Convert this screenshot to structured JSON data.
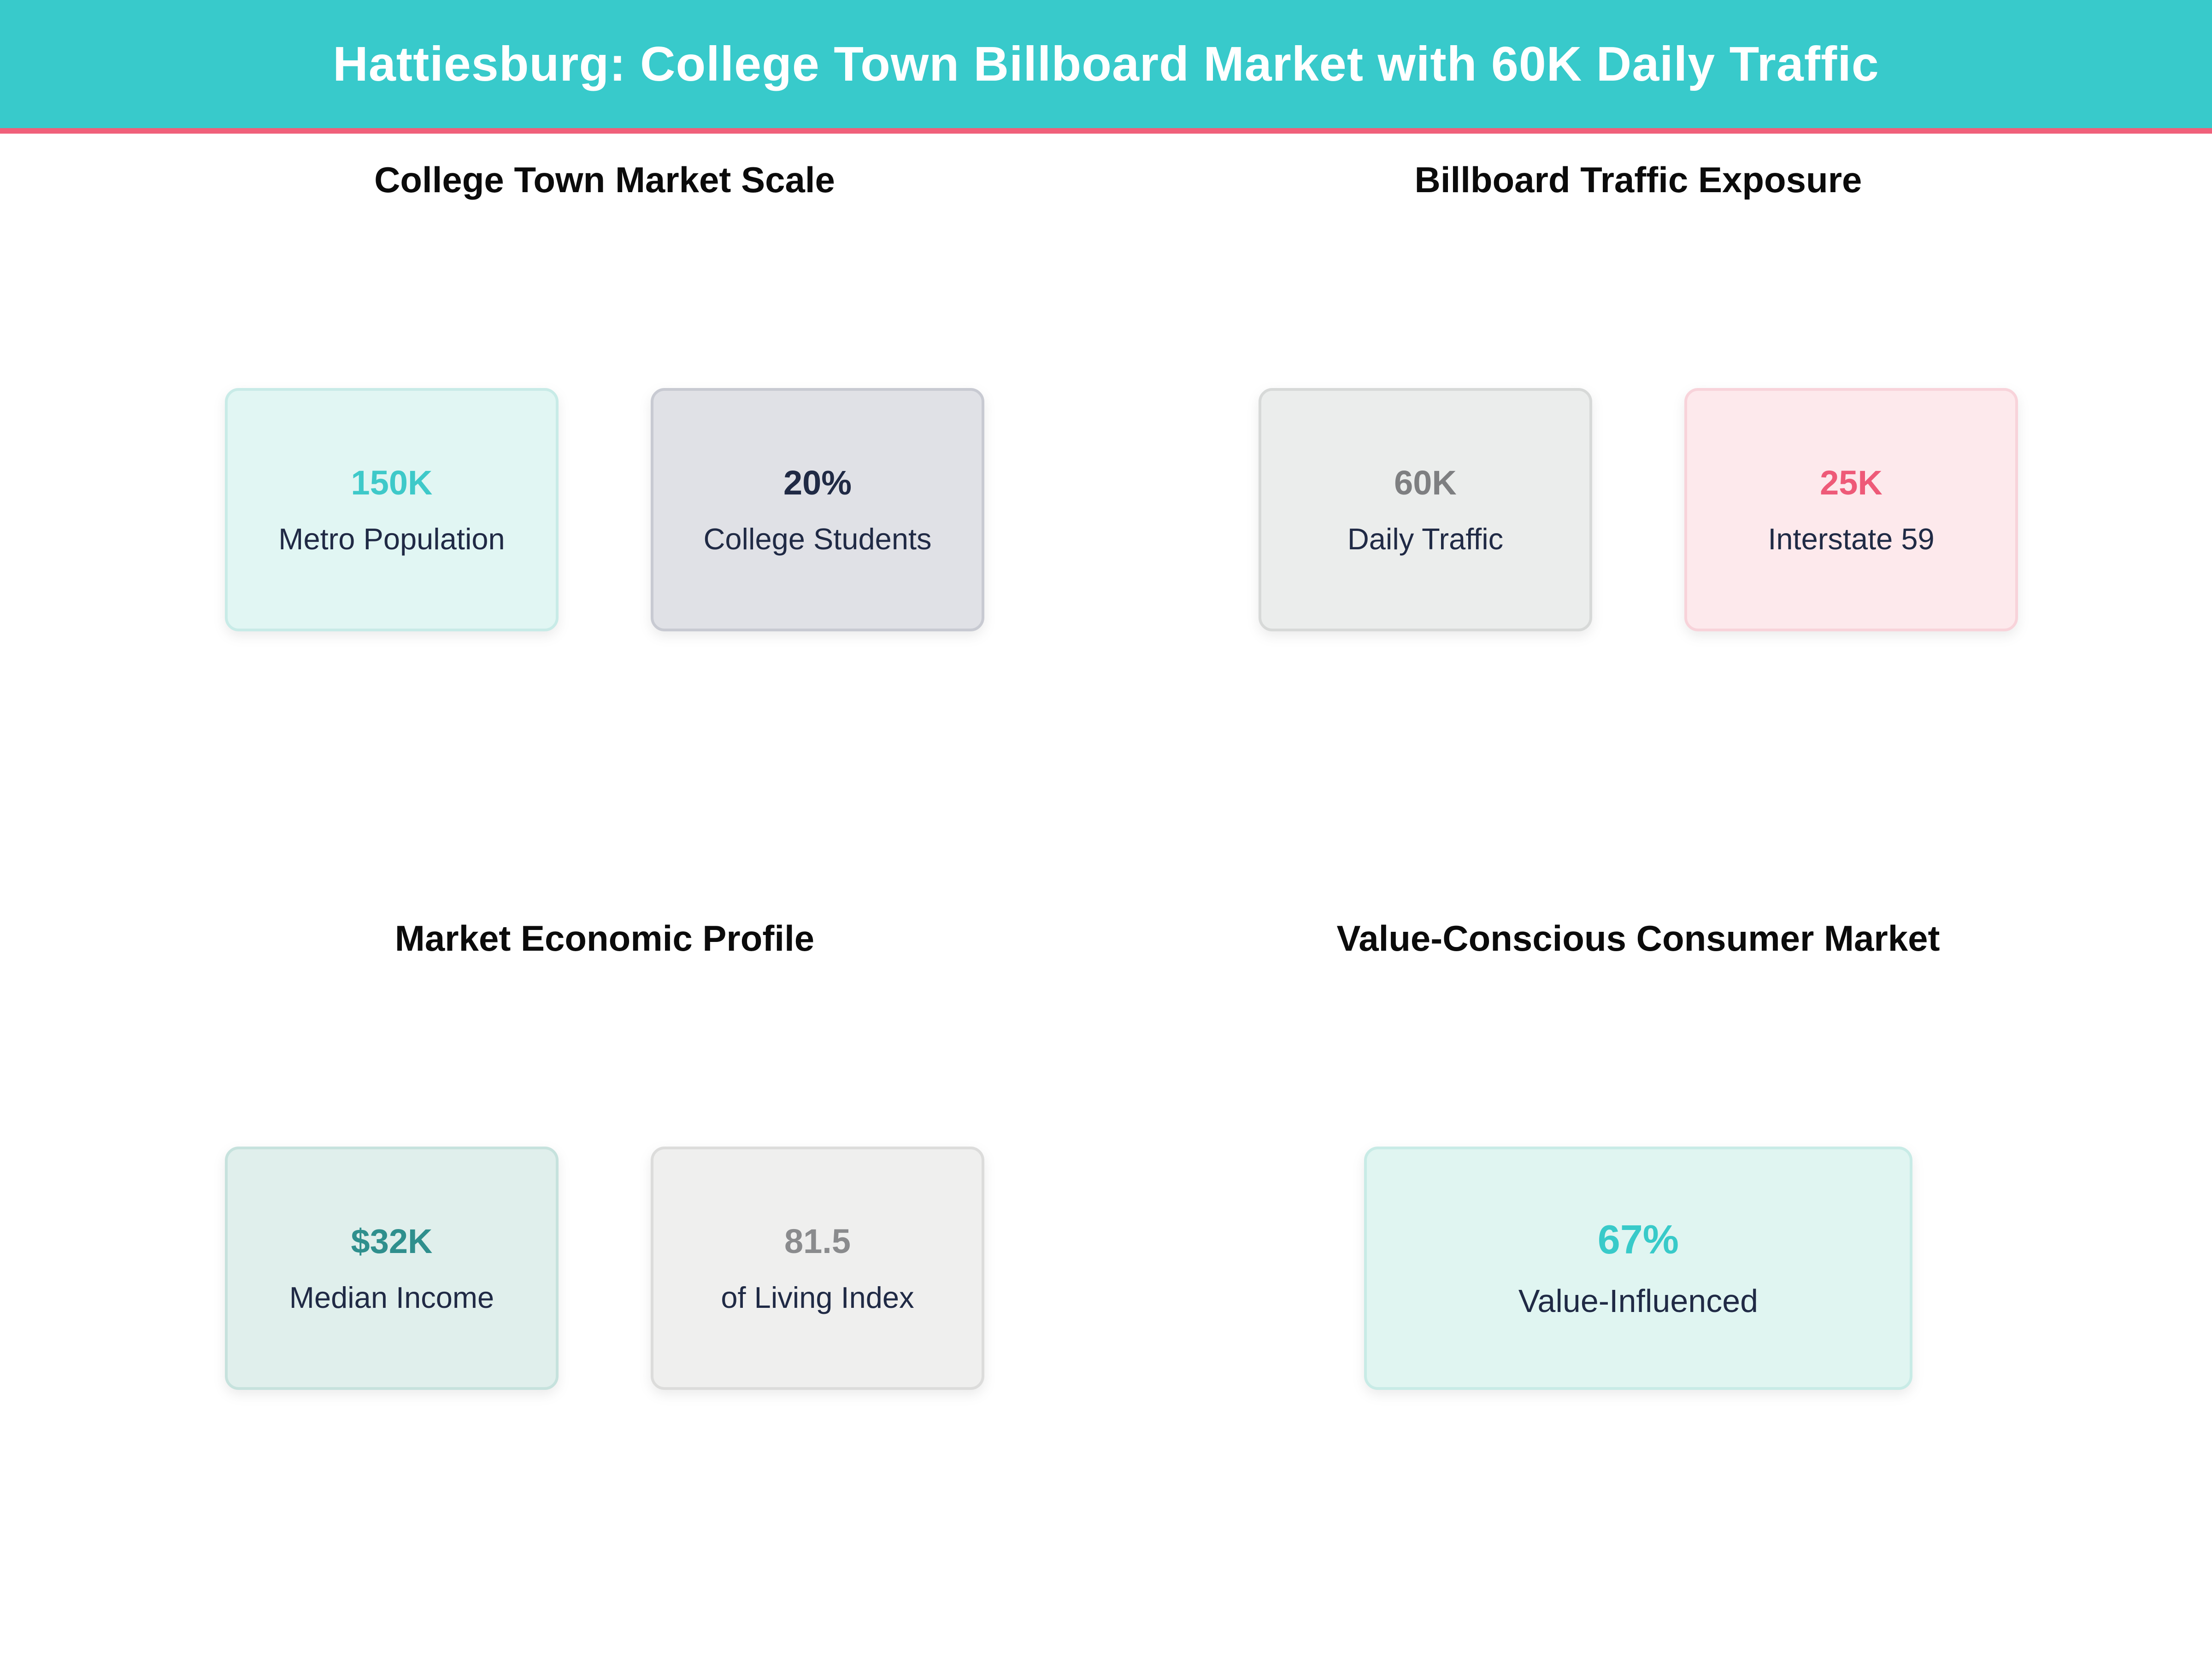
{
  "palette": {
    "page_bg": "#ffffff",
    "header_bg": "#38cacb",
    "header_accent": "#f0607a",
    "header_text": "#ffffff",
    "section_title_color": "#0b0b0b",
    "label_color": "#202a45"
  },
  "header": {
    "title": "Hattiesburg: College Town Billboard Market with 60K Daily Traffic"
  },
  "sections": [
    {
      "title": "College Town Market Scale",
      "cards": [
        {
          "value": "150K",
          "label": "Metro Population",
          "bg": "#e1f6f3",
          "border": "#c8ebe7",
          "value_color": "#3ec9c9"
        },
        {
          "value": "20%",
          "label": "College Students",
          "bg": "#e0e1e6",
          "border": "#c8cad2",
          "value_color": "#202a45"
        }
      ]
    },
    {
      "title": "Billboard Traffic Exposure",
      "cards": [
        {
          "value": "60K",
          "label": "Daily Traffic",
          "bg": "#ebedec",
          "border": "#d7d9d8",
          "value_color": "#7e7f81"
        },
        {
          "value": "25K",
          "label": "Interstate 59",
          "bg": "#fde9ec",
          "border": "#f8d3da",
          "value_color": "#ee5a78"
        }
      ]
    },
    {
      "title": "Market Economic Profile",
      "cards": [
        {
          "value": "$32K",
          "label": "Median Income",
          "bg": "#e0efec",
          "border": "#c6e2dd",
          "value_color": "#2f8f8d"
        },
        {
          "value": "81.5",
          "label": "of Living Index",
          "bg": "#efefee",
          "border": "#dcdcdb",
          "value_color": "#8a8b8d"
        }
      ]
    },
    {
      "title": "Value-Conscious Consumer Market",
      "cards": [
        {
          "value": "67%",
          "label": "Value-Influenced",
          "bg": "#e0f5f1",
          "border": "#c8ebe6",
          "value_color": "#38cac9"
        }
      ]
    }
  ],
  "chart_data": {
    "type": "table",
    "title": "Hattiesburg: College Town Billboard Market with 60K Daily Traffic",
    "groups": [
      {
        "group": "College Town Market Scale",
        "stats": [
          {
            "label": "Metro Population",
            "value": "150K"
          },
          {
            "label": "College Students",
            "value": "20%"
          }
        ]
      },
      {
        "group": "Billboard Traffic Exposure",
        "stats": [
          {
            "label": "Daily Traffic",
            "value": "60K"
          },
          {
            "label": "Interstate 59",
            "value": "25K"
          }
        ]
      },
      {
        "group": "Market Economic Profile",
        "stats": [
          {
            "label": "Median Income",
            "value": "$32K"
          },
          {
            "label": "of Living Index",
            "value": "81.5"
          }
        ]
      },
      {
        "group": "Value-Conscious Consumer Market",
        "stats": [
          {
            "label": "Value-Influenced",
            "value": "67%"
          }
        ]
      }
    ]
  }
}
